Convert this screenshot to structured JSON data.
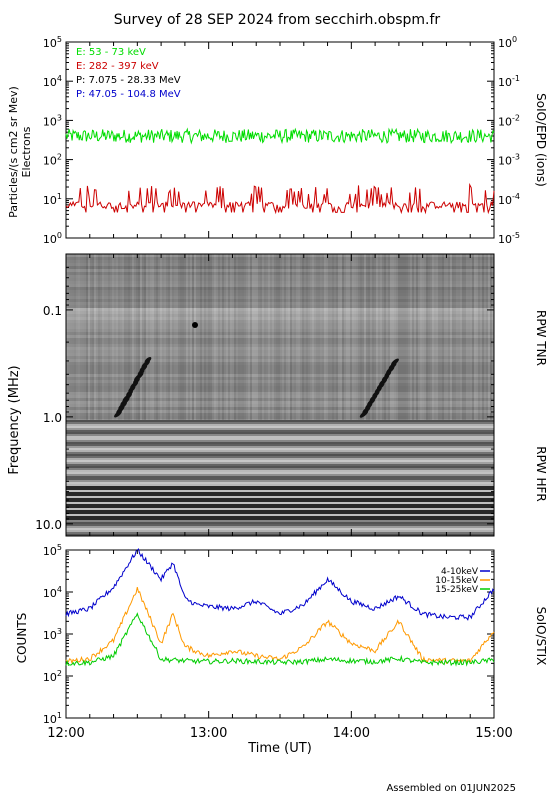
{
  "title": "Survey of 28 SEP 2024 from secchirh.obspm.fr",
  "footer": "Assembled on 01JUN2025",
  "chart_data": [
    {
      "type": "line",
      "panel": "SoIO/EPD (ions)",
      "yscale": "log",
      "ylim": [
        1,
        100000
      ],
      "ylabel_lines": [
        "Particles/(s cm2 sr Mev)",
        "Electrons"
      ],
      "right_label": "SoIO/EPD (ions)",
      "yticks": [
        "10^0",
        "10^1",
        "10^2",
        "10^3",
        "10^4",
        "10^5"
      ],
      "yticks_right": [
        "10^-5",
        "10^-4",
        "10^-3",
        "10^-2",
        "10^-1",
        "10^0"
      ],
      "series": [
        {
          "name": "E: 53 - 73 keV",
          "color": "#00dd00",
          "level": 400
        },
        {
          "name": "E: 282 - 397 keV",
          "color": "#cc0000",
          "level": 7
        },
        {
          "name": "P: 7.075 - 28.33 MeV",
          "color": "#000000"
        },
        {
          "name": "P: 47.05 - 104.8 MeV",
          "color": "#0000cc"
        }
      ]
    },
    {
      "type": "heatmap",
      "panel": "RPW TNR / RPW HFR",
      "ylabel": "Frequency (MHz)",
      "yscale": "log",
      "ylim": [
        0.03,
        13
      ],
      "yticks": [
        "0.1",
        "1.0",
        "10.0"
      ],
      "right_labels": [
        "RPW TNR",
        "RPW HFR"
      ],
      "tnr_hfr_boundary_mhz": 1.0
    },
    {
      "type": "line",
      "panel": "SoIO/STIX",
      "ylabel": "COUNTS",
      "yscale": "log",
      "ylim": [
        10,
        100000
      ],
      "right_label": "SoIO/STIX",
      "yticks": [
        "10^1",
        "10^2",
        "10^3",
        "10^4",
        "10^5"
      ],
      "series": [
        {
          "name": "4-10keV",
          "color": "#0000cc",
          "x": [
            0,
            10,
            20,
            30,
            40,
            45,
            50,
            55,
            60,
            70,
            80,
            90,
            100,
            110,
            120,
            130,
            140,
            150,
            160,
            170,
            180
          ],
          "y": [
            3000,
            4000,
            13000,
            100000,
            20000,
            50000,
            7000,
            5000,
            4500,
            4000,
            6000,
            3000,
            5000,
            20000,
            6000,
            4000,
            8000,
            3000,
            2500,
            2500,
            12000
          ]
        },
        {
          "name": "10-15keV",
          "color": "#ff9900",
          "x": [
            0,
            10,
            20,
            30,
            40,
            45,
            50,
            60,
            70,
            80,
            90,
            100,
            110,
            120,
            130,
            140,
            150,
            160,
            170,
            180
          ],
          "y": [
            220,
            260,
            700,
            12000,
            600,
            3000,
            500,
            300,
            400,
            300,
            250,
            500,
            2000,
            600,
            400,
            2000,
            250,
            230,
            230,
            1200
          ]
        },
        {
          "name": "15-25keV",
          "color": "#00cc00",
          "x": [
            0,
            10,
            20,
            30,
            40,
            50,
            60,
            70,
            80,
            90,
            100,
            110,
            120,
            130,
            140,
            150,
            160,
            170,
            180
          ],
          "y": [
            200,
            210,
            300,
            3000,
            250,
            230,
            220,
            230,
            220,
            210,
            220,
            250,
            230,
            220,
            260,
            210,
            210,
            210,
            240
          ]
        }
      ]
    }
  ],
  "x_axis": {
    "xlabel": "Time (UT)",
    "xlim": [
      "12:00",
      "15:00"
    ],
    "ticks": [
      "12:00",
      "13:00",
      "14:00",
      "15:00"
    ]
  }
}
